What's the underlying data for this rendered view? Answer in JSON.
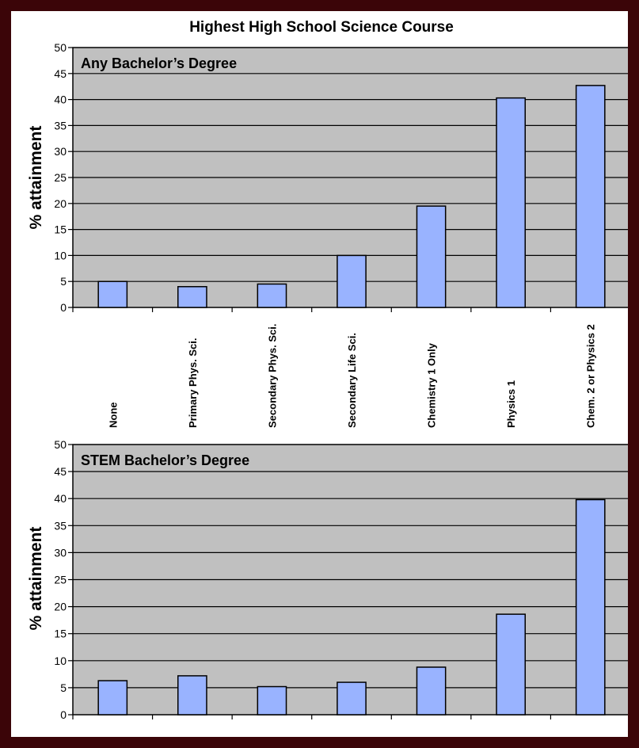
{
  "chart_data": {
    "title": "Highest High School Science Course",
    "categories": [
      "None",
      "Primary Phys. Sci.",
      "Secondary Phys. Sci.",
      "Secondary Life Sci.",
      "Chemistry 1 Only",
      "Physics 1",
      "Chem. 2 or Physics 2"
    ],
    "panels": [
      {
        "type": "bar",
        "panel_title": "Any Bachelor’s Degree",
        "ylabel": "% attainment",
        "xlabel": "",
        "ylim": [
          0,
          50
        ],
        "yticks": [
          0,
          5,
          10,
          15,
          20,
          25,
          30,
          35,
          40,
          45,
          50
        ],
        "grid": true,
        "values": [
          5,
          4,
          4.5,
          10,
          19.5,
          40.3,
          42.7
        ]
      },
      {
        "type": "bar",
        "panel_title": "STEM Bachelor’s Degree",
        "ylabel": "% attainment",
        "xlabel": "",
        "ylim": [
          0,
          50
        ],
        "yticks": [
          0,
          5,
          10,
          15,
          20,
          25,
          30,
          35,
          40,
          45,
          50
        ],
        "grid": true,
        "values": [
          6.3,
          7.2,
          5.2,
          6,
          8.8,
          18.6,
          39.8
        ]
      }
    ],
    "colors": {
      "bar_fill": "#99b3ff",
      "plot_background": "#c0c0c0",
      "page_background": "#3b0508",
      "frame_background": "#ffffff"
    }
  }
}
